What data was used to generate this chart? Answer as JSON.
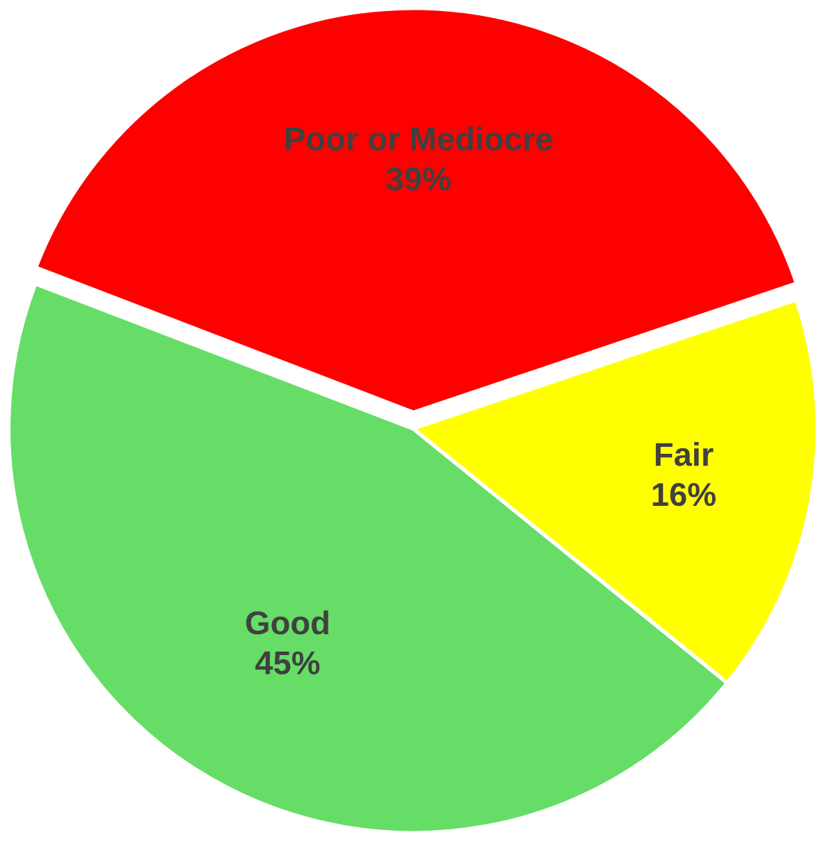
{
  "chart_data": {
    "type": "pie",
    "categories": [
      "Poor or Mediocre",
      "Fair",
      "Good"
    ],
    "values": [
      39,
      16,
      45
    ],
    "colors": [
      "#ff0000",
      "#ffff00",
      "#66dd66"
    ],
    "value_labels": [
      "39%",
      "16%",
      "45%"
    ],
    "legend": false
  }
}
